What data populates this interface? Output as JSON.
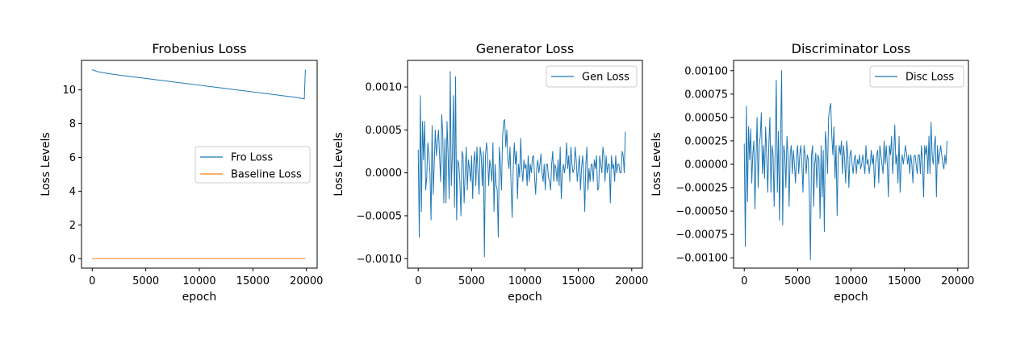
{
  "chart_data": [
    {
      "type": "line",
      "title": "Frobenius Loss",
      "xlabel": "epoch",
      "ylabel": "Loss Levels",
      "xlim": [
        -1000,
        21000
      ],
      "ylim": [
        -0.56,
        11.75
      ],
      "xticks": [
        0,
        5000,
        10000,
        15000,
        20000
      ],
      "yticks": [
        0,
        2,
        4,
        6,
        8,
        10
      ],
      "legend": "center-right",
      "grid": false,
      "series": [
        {
          "name": "Fro Loss",
          "color": "#1f77b4",
          "x": [
            0,
            500,
            1000,
            2000,
            3000,
            4000,
            5000,
            6000,
            7000,
            8000,
            9000,
            10000,
            11000,
            12000,
            13000,
            14000,
            15000,
            16000,
            17000,
            18000,
            19000,
            19800,
            19900
          ],
          "y": [
            11.2,
            11.08,
            11.02,
            10.92,
            10.84,
            10.76,
            10.68,
            10.6,
            10.52,
            10.44,
            10.36,
            10.28,
            10.2,
            10.12,
            10.04,
            9.96,
            9.88,
            9.8,
            9.72,
            9.64,
            9.56,
            9.47,
            11.2
          ]
        },
        {
          "name": "Baseline Loss",
          "color": "#ff7f0e",
          "x": [
            0,
            19900
          ],
          "y": [
            0,
            0
          ]
        }
      ]
    },
    {
      "type": "line",
      "title": "Generator Loss",
      "xlabel": "epoch",
      "ylabel": "Loss Levels",
      "xlim": [
        -1000,
        21000
      ],
      "ylim": [
        -0.00111,
        0.00131
      ],
      "xticks": [
        0,
        5000,
        10000,
        15000,
        20000
      ],
      "yticks": [
        -0.001,
        -0.0005,
        0,
        0.0005,
        0.001
      ],
      "ytick_labels": [
        "−0.0010",
        "−0.0005",
        "0.0000",
        "0.0005",
        "0.0010"
      ],
      "legend": "top-right",
      "grid": false,
      "series": [
        {
          "name": "Gen Loss",
          "color": "#1f77b4",
          "x_start": 0,
          "x_step": 100,
          "values": [
            0.00027,
            -0.00075,
            0.0009,
            -0.00045,
            0.0006,
            0.00015,
            0.0006,
            -0.0002,
            -5e-05,
            0.00035,
            0.0002,
            0.0,
            -0.00055,
            0.00055,
            -0.00025,
            0.0001,
            0.0005,
            0.0002,
            0.00035,
            0.0005,
            0.0002,
            -0.0001,
            0.00068,
            0.00045,
            -0.00035,
            0.0004,
            -0.00035,
            0.0006,
            0.0002,
            -0.0003,
            0.00118,
            -0.00015,
            0.0002,
            0.0009,
            -0.0004,
            0.00112,
            -0.00055,
            0.00015,
            0.0001,
            -0.0001,
            -0.0005,
            0.00025,
            0.0002,
            -0.00035,
            0.0,
            0.0003,
            -0.0002,
            0.00015,
            5e-05,
            -0.0001,
            0.0002,
            -0.0003,
            0.00012,
            0.00025,
            -0.00015,
            0.0003,
            0.0,
            -0.00025,
            0.0003,
            0.0002,
            -0.00015,
            0.00025,
            -0.00098,
            0.0002,
            0.00035,
            0.0002,
            -0.00015,
            0.00015,
            5e-05,
            -0.0001,
            0.00035,
            -0.00045,
            0.0001,
            -0.00015,
            -0.0002,
            -0.00075,
            0.0003,
            0.0001,
            -0.0002,
            0.0004,
            0.0006,
            0.00062,
            0.0003,
            0.0005,
            0.00015,
            5e-05,
            0.0003,
            -0.00015,
            -0.00052,
            5e-05,
            0.00035,
            0.0001,
            0.00025,
            -0.0003,
            0.0001,
            -5e-05,
            0.0004,
            5e-05,
            -0.0001,
            0.00015,
            5e-05,
            0.0001,
            -0.00015,
            0.0002,
            -0.0001,
            0.0001,
            0.0,
            0.00018,
            0.0002,
            -5e-05,
            -0.00025,
            5e-05,
            0.00015,
            0.0,
            0.0001,
            0.00022,
            0.0,
            -0.0001,
            0.0001,
            -0.0002,
            0.0001,
            0.0001,
            -5e-05,
            -0.0001,
            -0.0002,
            0.0001,
            0.00025,
            -0.0001,
            0.0001,
            5e-05,
            -0.0001,
            0.00015,
            -0.00015,
            0.0003,
            -0.0003,
            0.0,
            0.0001,
            0.0,
            0.0001,
            0.00035,
            5e-05,
            0.0002,
            -0.0001,
            0.0003,
            0.0001,
            0.0,
            5e-05,
            0.0003,
            0.00015,
            -0.0001,
            5e-05,
            0.0002,
            -0.0002,
            5e-05,
            0.0002,
            0.0,
            -0.00045,
            0.0001,
            0.0003,
            -0.0002,
            5e-05,
            -0.0001,
            0.0001,
            0.0001,
            -0.0001,
            0.00015,
            5e-05,
            0.0002,
            -0.0002,
            -0.00018,
            0.0002,
            0.0001,
            0.0,
            0.0003,
            0.0002,
            -0.0001,
            0.0002,
            0.0,
            0.0001,
            0.0001,
            -0.00035,
            0.0002,
            5e-05,
            0.0001,
            -0.0001,
            0.0002,
            0.0,
            0.0001,
            0.0001,
            0.0,
            0.0,
            0.00025,
            0.0002,
            0.0,
            0.00048
          ]
        }
      ]
    },
    {
      "type": "line",
      "title": "Discriminator Loss",
      "xlabel": "epoch",
      "ylabel": "Loss Levels",
      "xlim": [
        -1000,
        21000
      ],
      "ylim": [
        -0.00111,
        0.00111
      ],
      "xticks": [
        0,
        5000,
        10000,
        15000,
        20000
      ],
      "yticks": [
        -0.001,
        -0.00075,
        -0.0005,
        -0.00025,
        0,
        0.00025,
        0.0005,
        0.00075,
        0.001
      ],
      "ytick_labels": [
        "−0.00100",
        "−0.00075",
        "−0.00050",
        "−0.00025",
        "0.00000",
        "0.00025",
        "0.00050",
        "0.00075",
        "0.00100"
      ],
      "legend": "top-right",
      "grid": false,
      "series": [
        {
          "name": "Disc Loss",
          "color": "#1f77b4",
          "x_start": 0,
          "x_step": 100,
          "values": [
            0.00022,
            -0.00088,
            0.00062,
            -0.0004,
            0.0004,
            5e-05,
            0.00038,
            -0.0002,
            0.0001,
            0.00025,
            -0.00048,
            5e-05,
            0.0005,
            -0.00025,
            0.0002,
            0.0003,
            0.00055,
            -0.0001,
            0.0002,
            -0.00015,
            0.0004,
            0.0001,
            -0.0003,
            0.0002,
            0.0005,
            -0.0003,
            0.0002,
            0.0001,
            -0.00045,
            0.0002,
            0.0009,
            -0.0003,
            0.00035,
            -0.0006,
            0.00025,
            0.001,
            -0.00065,
            0.0002,
            0.0001,
            -0.00025,
            0.0003,
            0.0001,
            -0.00045,
            0.0001,
            0.0002,
            -0.0001,
            0.00015,
            0.0,
            -0.0002,
            0.0001,
            0.0002,
            -0.0001,
            0.0001,
            0.0002,
            0.0,
            -0.0003,
            0.0002,
            0.0001,
            -0.0001,
            0.0001,
            5e-05,
            -0.00035,
            -0.00102,
            0.0001,
            0.0002,
            -0.00045,
            0.0,
            0.00012,
            -0.00025,
            0.0001,
            5e-05,
            -0.00058,
            0.0002,
            -0.00035,
            0.00015,
            -0.00072,
            0.00035,
            0.0002,
            -0.0001,
            0.0005,
            0.0006,
            0.00065,
            0.0003,
            0.0001,
            0.0004,
            -0.00015,
            0.0002,
            -0.00055,
            0.0001,
            0.0002,
            0.0001,
            0.00025,
            -0.0001,
            0.0002,
            5e-05,
            -0.0002,
            0.00025,
            0.0001,
            -0.00025,
            0.0001,
            0.00015,
            0.0,
            -0.0001,
            5e-05,
            0.0001,
            -0.0001,
            5e-05,
            0.0,
            0.0001,
            -5e-05,
            0.0,
            0.0001,
            0.0,
            -0.0001,
            0.0002,
            0.0,
            5e-05,
            -0.0001,
            0.0,
            0.00015,
            0.0,
            0.0001,
            -0.00025,
            0.0,
            0.0001,
            0.00015,
            -0.0002,
            0.0002,
            0.0001,
            0.0,
            -0.0001,
            0.00025,
            0.0,
            0.0002,
            0.0,
            -0.00035,
            0.0002,
            0.0001,
            0.0003,
            -0.0001,
            0.0001,
            0.00042,
            0.0,
            0.0001,
            -0.0002,
            0.0003,
            -0.0003,
            0.0,
            0.0001,
            0.0,
            0.0001,
            0.0002,
            0.00012,
            0.0,
            0.0001,
            -0.0001,
            0.0001,
            0.0,
            -0.0002,
            8e-05,
            0.0001,
            0.0,
            -0.0001,
            0.0001,
            0.0001,
            -0.0001,
            0.0002,
            0.0,
            -0.00035,
            0.0002,
            0.0001,
            0.0002,
            -0.0001,
            0.0003,
            -0.0001,
            0.00045,
            0.0001,
            0.0,
            0.0002,
            0.0003,
            -0.00035,
            0.0002,
            0.0,
            0.0001,
            0.0002,
            0.0001,
            0.0,
            -5e-05,
            0.0001,
            0.0,
            0.00025
          ]
        }
      ]
    }
  ]
}
